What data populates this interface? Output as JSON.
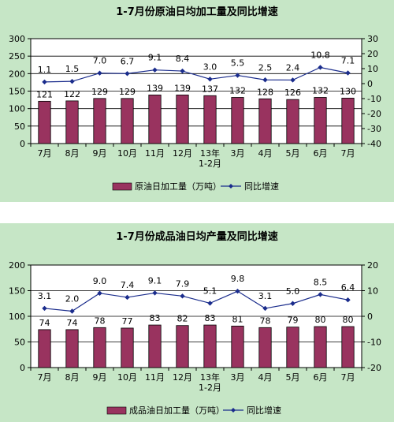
{
  "charts": [
    {
      "type": "bar+line",
      "title": "1-7月份原油日均加工量及同比增速",
      "categories": [
        "7月",
        "8月",
        "9月",
        "10月",
        "11月",
        "12月",
        "13年|1-2月",
        "3月",
        "4月",
        "5月",
        "6月",
        "7月"
      ],
      "bar_series": {
        "name": "原油日加工量（万吨）",
        "values": [
          121,
          122,
          129,
          129,
          139,
          139,
          137,
          132,
          128,
          126,
          132,
          130
        ]
      },
      "line_series": {
        "name": "同比增速",
        "values": [
          1.1,
          1.5,
          7.0,
          6.7,
          9.1,
          8.4,
          3.0,
          5.5,
          2.5,
          2.4,
          10.8,
          7.1
        ],
        "labels": [
          "1.1",
          "1.5",
          "7.0",
          "6.7",
          "9.1",
          "8.4",
          "3.0",
          "5.5",
          "2.5",
          "2.4",
          "10.8",
          "7.1"
        ]
      },
      "y_left": {
        "min": 0,
        "max": 300,
        "ticks": [
          0,
          50,
          100,
          150,
          200,
          250,
          300
        ]
      },
      "y_right": {
        "min": -40,
        "max": 30,
        "ticks": [
          30,
          20,
          10,
          0,
          -10,
          -20,
          -30,
          -40
        ]
      },
      "colors": {
        "bar": "#99335f",
        "line": "#1a2c8c",
        "plot_bg": "#ffffff",
        "panel_bg": "#c6e6c6"
      },
      "grid": true,
      "legend_position": "bottom"
    },
    {
      "type": "bar+line",
      "title": "1-7月份成品油日均产量及同比增速",
      "categories": [
        "7月",
        "8月",
        "9月",
        "10月",
        "11月",
        "12月",
        "13年|1-2月",
        "3月",
        "4月",
        "5月",
        "6月",
        "7月"
      ],
      "bar_series": {
        "name": "成品油日加工量（万吨）",
        "values": [
          74,
          74,
          78,
          77,
          83,
          82,
          83,
          81,
          78,
          79,
          80,
          80
        ]
      },
      "line_series": {
        "name": "同比增速",
        "values": [
          3.1,
          2.0,
          9.0,
          7.4,
          9.1,
          7.9,
          5.1,
          9.8,
          3.1,
          5.0,
          8.5,
          6.4
        ],
        "labels": [
          "3.1",
          "2.0",
          "9.0",
          "7.4",
          "9.1",
          "7.9",
          "5.1",
          "9.8",
          "3.1",
          "5.0",
          "8.5",
          "6.4"
        ]
      },
      "y_left": {
        "min": 0,
        "max": 200,
        "ticks": [
          0,
          50,
          100,
          150,
          200
        ]
      },
      "y_right": {
        "min": -20,
        "max": 20,
        "ticks": [
          20,
          10,
          0,
          -10,
          -20
        ]
      },
      "colors": {
        "bar": "#99335f",
        "line": "#1a2c8c",
        "plot_bg": "#ffffff",
        "panel_bg": "#c6e6c6"
      },
      "grid": true,
      "legend_position": "bottom"
    }
  ]
}
